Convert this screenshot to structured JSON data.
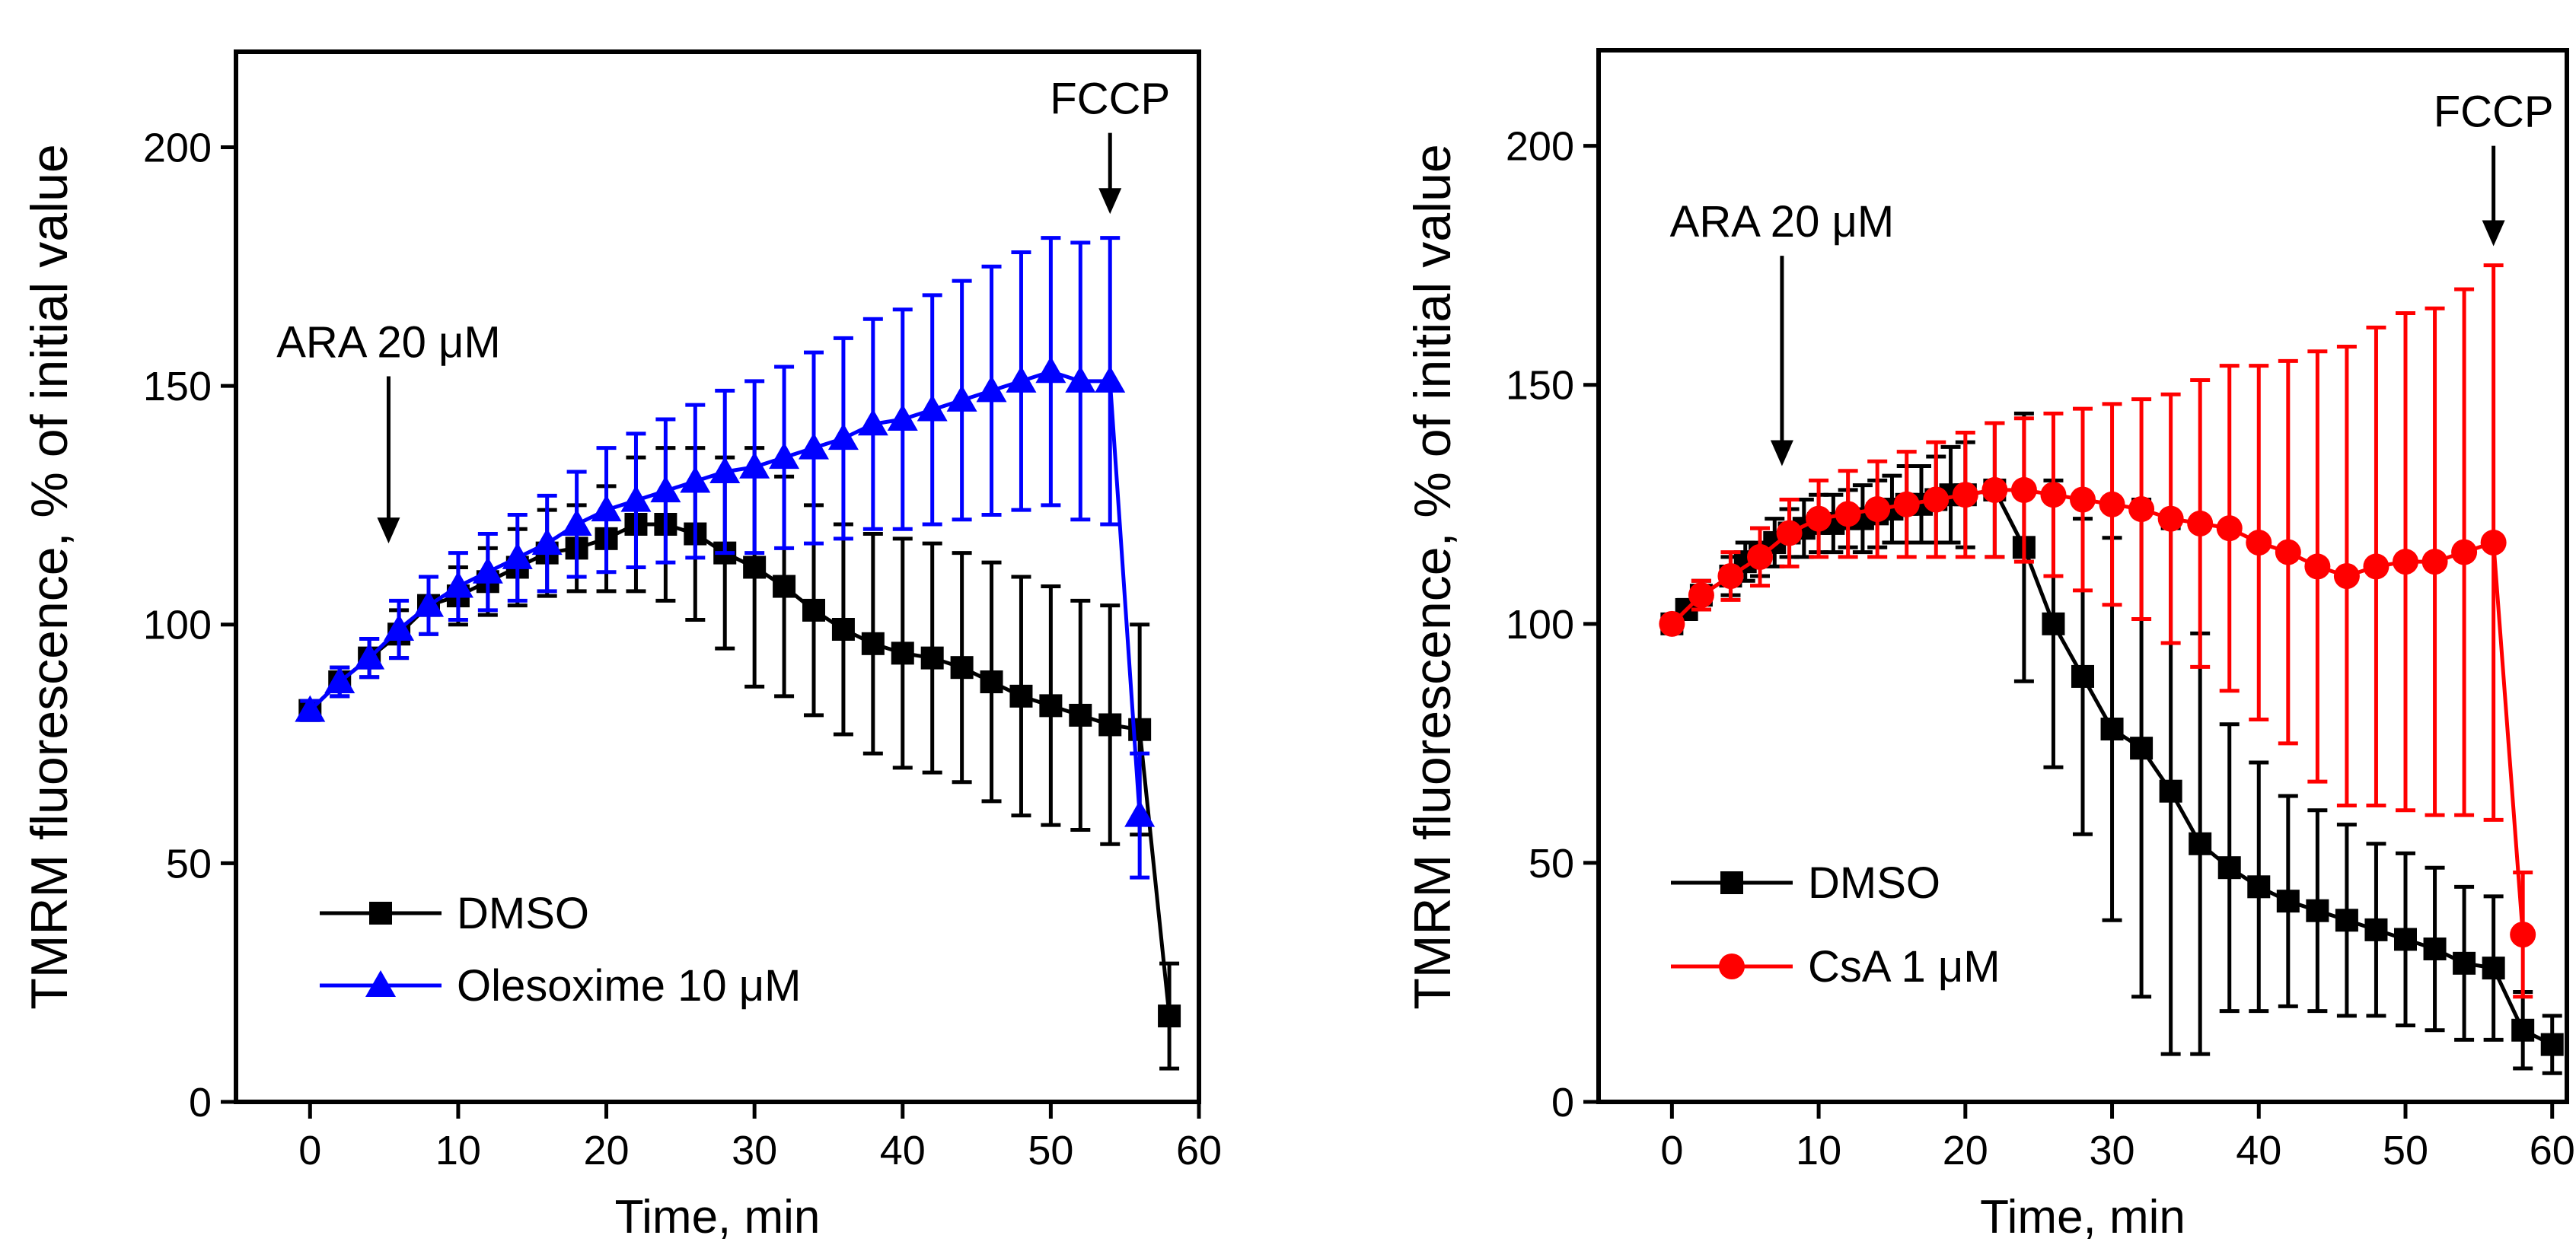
{
  "chart_data": [
    {
      "type": "line",
      "title": "",
      "xlabel": "Time, min",
      "ylabel": "TMRM fluorescence, % of initial value",
      "xlim": [
        -5,
        60
      ],
      "ylim": [
        0,
        220
      ],
      "xticks": [
        0,
        10,
        20,
        30,
        40,
        50,
        60
      ],
      "yticks": [
        0,
        50,
        100,
        150,
        200
      ],
      "xtick_labels": [
        "0",
        "10",
        "20",
        "30",
        "40",
        "50",
        "60"
      ],
      "ytick_labels": [
        "0",
        "50",
        "100",
        "150",
        "200"
      ],
      "annotations": [
        {
          "text": "ARA 20 μM",
          "x": 5.3,
          "arrow_from": 152,
          "arrow_to": 117
        },
        {
          "text": "FCCP",
          "x": 54,
          "arrow_from": 203,
          "arrow_to": 186
        }
      ],
      "legend": {
        "position": "bottom-left"
      },
      "series": [
        {
          "name": "DMSO",
          "marker": "square",
          "color": "#000000",
          "x": [
            0,
            2,
            4,
            6,
            8,
            10,
            12,
            14,
            16,
            18,
            20,
            22,
            24,
            26,
            28,
            30,
            32,
            34,
            36,
            38,
            40,
            42,
            44,
            46,
            48,
            50,
            52,
            54,
            56,
            58
          ],
          "y": [
            82,
            88,
            93,
            98,
            104,
            106,
            109,
            112,
            115,
            116,
            118,
            121,
            121,
            119,
            115,
            112,
            108,
            103,
            99,
            96,
            94,
            93,
            91,
            88,
            85,
            83,
            81,
            79,
            78,
            18
          ],
          "err": [
            2,
            3,
            4,
            5,
            6,
            6,
            7,
            8,
            9,
            9,
            11,
            14,
            16,
            18,
            20,
            25,
            23,
            22,
            22,
            23,
            24,
            24,
            24,
            25,
            25,
            25,
            24,
            25,
            22,
            11
          ]
        },
        {
          "name": "Olesoxime 10 μM",
          "marker": "triangle",
          "color": "#0000ff",
          "x": [
            0,
            2,
            4,
            6,
            8,
            10,
            12,
            14,
            16,
            18,
            20,
            22,
            24,
            26,
            28,
            30,
            32,
            34,
            36,
            38,
            40,
            42,
            44,
            46,
            48,
            50,
            52,
            54,
            56
          ],
          "y": [
            82,
            88,
            93,
            99,
            104,
            108,
            111,
            114,
            117,
            121,
            124,
            126,
            128,
            130,
            132,
            133,
            135,
            137,
            139,
            142,
            143,
            145,
            147,
            149,
            151,
            153,
            151,
            151,
            60
          ],
          "err": [
            2,
            3,
            4,
            6,
            6,
            7,
            8,
            9,
            10,
            11,
            13,
            14,
            15,
            16,
            17,
            18,
            19,
            20,
            21,
            22,
            23,
            24,
            25,
            26,
            27,
            28,
            29,
            30,
            13
          ]
        }
      ]
    },
    {
      "type": "line",
      "title": "",
      "xlabel": "Time, min",
      "ylabel": "TMRM fluorescence, % of initial value",
      "xlim": [
        -5,
        61
      ],
      "ylim": [
        0,
        220
      ],
      "xticks": [
        0,
        10,
        20,
        30,
        40,
        50,
        60
      ],
      "yticks": [
        0,
        50,
        100,
        150,
        200
      ],
      "xtick_labels": [
        "0",
        "10",
        "20",
        "30",
        "40",
        "50",
        "60"
      ],
      "ytick_labels": [
        "0",
        "50",
        "100",
        "150",
        "200"
      ],
      "annotations": [
        {
          "text": "ARA 20 μM",
          "x": 7.5,
          "arrow_from": 177,
          "arrow_to": 133
        },
        {
          "text": "FCCP",
          "x": 56,
          "arrow_from": 200,
          "arrow_to": 179
        }
      ],
      "legend": {
        "position": "bottom-left"
      },
      "series": [
        {
          "name": "DMSO",
          "marker": "square",
          "color": "#000000",
          "x": [
            0,
            1,
            2,
            4,
            5,
            6,
            7,
            8,
            9,
            10,
            11,
            12,
            13,
            14,
            15,
            16,
            17,
            18,
            19,
            20,
            22,
            24,
            26,
            28,
            30,
            32,
            34,
            36,
            38,
            40,
            42,
            44,
            46,
            48,
            50,
            52,
            54,
            56,
            58,
            60
          ],
          "y": [
            100,
            103,
            106,
            110,
            113,
            115,
            117,
            119,
            120,
            121,
            121,
            122,
            122,
            123,
            124,
            125,
            125,
            126,
            127,
            127,
            128,
            116,
            100,
            89,
            78,
            74,
            65,
            54,
            49,
            45,
            42,
            40,
            38,
            36,
            34,
            32,
            29,
            28,
            15,
            12
          ],
          "err": [
            1,
            2,
            3,
            4,
            4,
            5,
            5,
            5,
            6,
            6,
            6,
            6,
            7,
            7,
            7,
            8,
            8,
            9,
            10,
            11,
            14,
            28,
            30,
            33,
            40,
            52,
            55,
            44,
            30,
            26,
            22,
            21,
            20,
            18,
            18,
            17,
            16,
            15,
            8,
            6
          ]
        },
        {
          "name": "CsA 1 μM",
          "marker": "circle",
          "color": "#ff0000",
          "x": [
            0,
            2,
            4,
            6,
            8,
            10,
            12,
            14,
            16,
            18,
            20,
            22,
            24,
            26,
            28,
            30,
            32,
            34,
            36,
            38,
            40,
            42,
            44,
            46,
            48,
            50,
            52,
            54,
            56,
            58
          ],
          "y": [
            100,
            106,
            110,
            114,
            119,
            122,
            123,
            124,
            125,
            126,
            127,
            128,
            128,
            127,
            126,
            125,
            124,
            122,
            121,
            120,
            117,
            115,
            112,
            110,
            112,
            113,
            113,
            115,
            117,
            35
          ],
          "err": [
            1,
            3,
            5,
            6,
            7,
            8,
            9,
            10,
            11,
            12,
            13,
            14,
            15,
            17,
            19,
            21,
            23,
            26,
            30,
            34,
            37,
            40,
            45,
            48,
            50,
            52,
            53,
            55,
            58,
            13
          ]
        }
      ]
    }
  ]
}
